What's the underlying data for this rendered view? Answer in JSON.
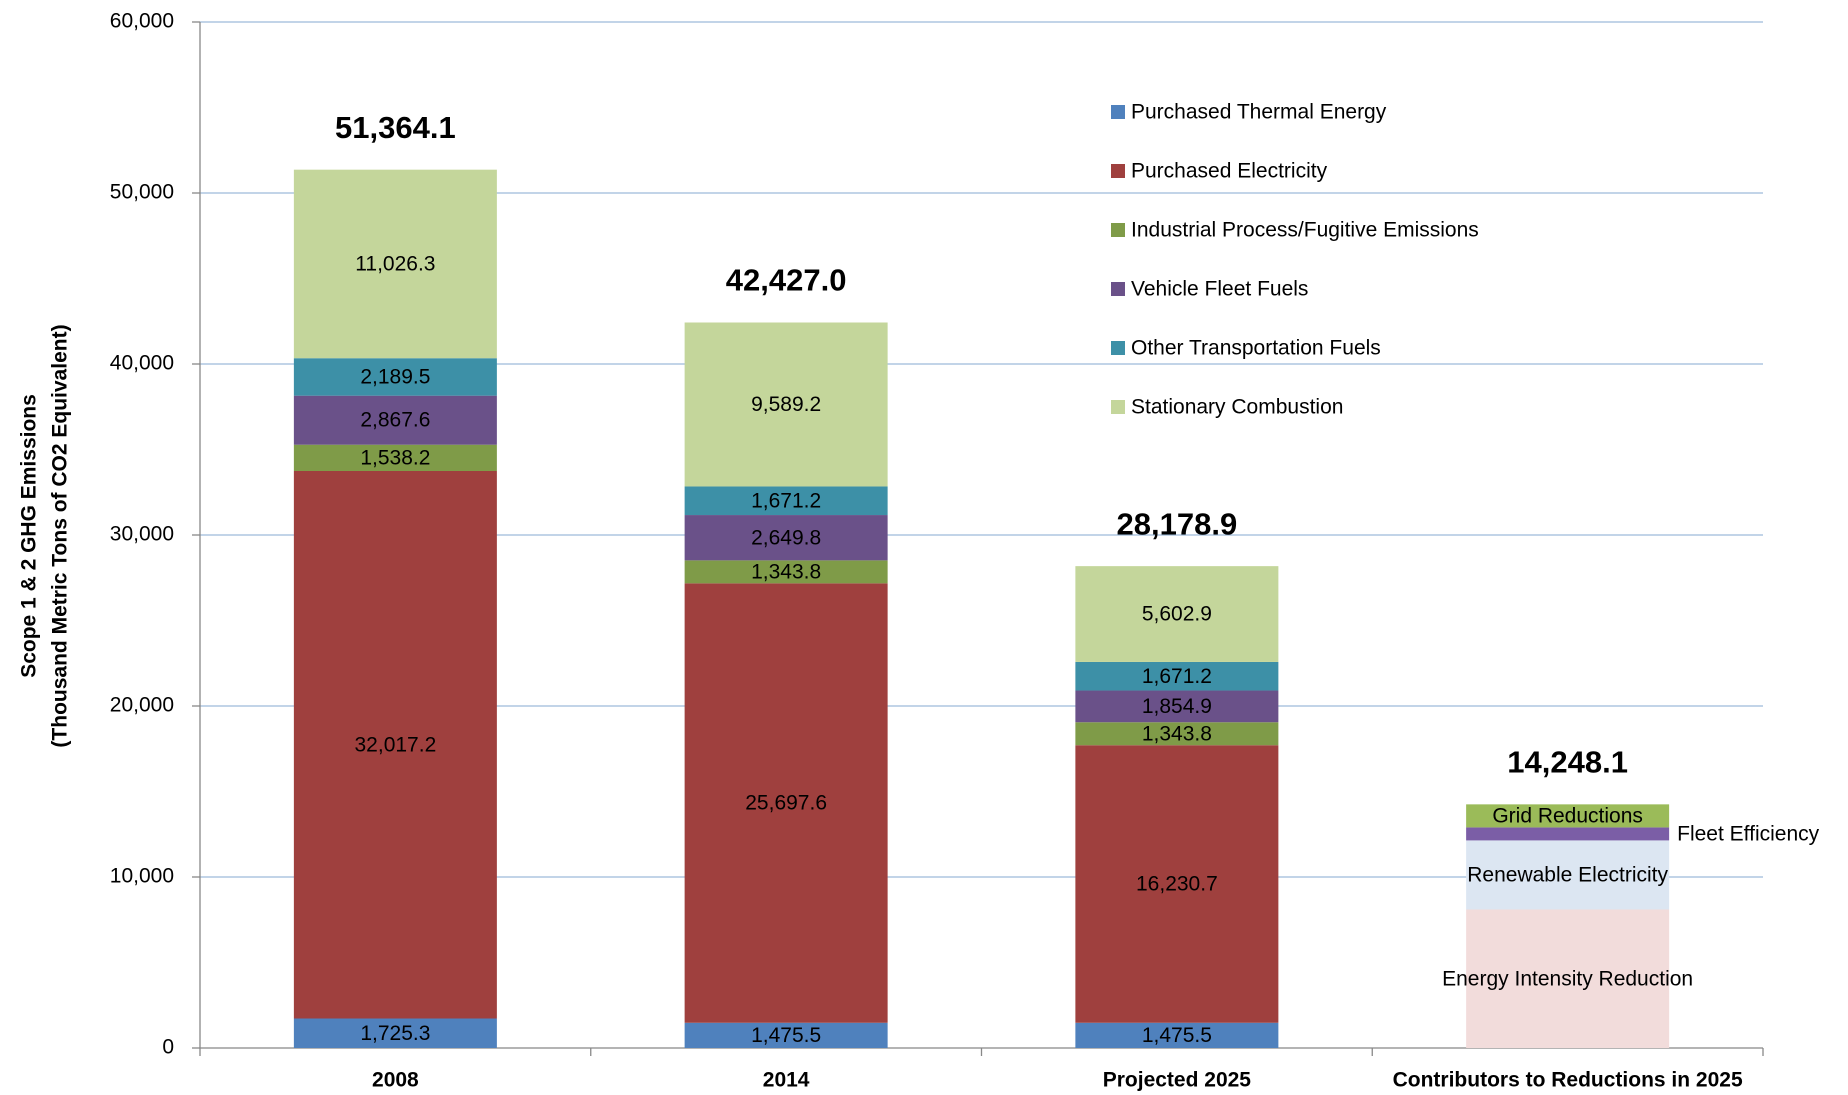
{
  "chart_data": {
    "type": "stacked_bar",
    "ylabel": [
      "Scope 1 & 2 GHG Emissions",
      "(Thousand Metric Tons of CO2 Equivalent)"
    ],
    "categories": [
      "2008",
      "2014",
      "Projected 2025",
      "Contributors to Reductions in 2025"
    ],
    "ylim": [
      0,
      60000
    ],
    "yticks": [
      0,
      {
        "value": 10000,
        "label": "10,000"
      },
      {
        "value": 20000,
        "label": "20,000"
      },
      {
        "value": 30000,
        "label": "30,000"
      },
      {
        "value": 40000,
        "label": "40,000"
      },
      {
        "value": 50000,
        "label": "50,000"
      },
      {
        "value": 60000,
        "label": "60,000"
      }
    ],
    "grid": true,
    "legend": "upper right",
    "series": [
      {
        "name": "Purchased Thermal Energy",
        "color": "#4f81bd",
        "values": [
          1725.3,
          1475.5,
          1475.5,
          null
        ],
        "value_labels": [
          "1,725.3",
          "1,475.5",
          "1,475.5",
          null
        ]
      },
      {
        "name": "Purchased Electricity",
        "color": "#9f403e",
        "values": [
          32017.2,
          25697.6,
          16230.7,
          null
        ],
        "value_labels": [
          "32,017.2",
          "25,697.6",
          "16,230.7",
          null
        ]
      },
      {
        "name": "Industrial Process/Fugitive Emissions",
        "color": "#7f9b48",
        "values": [
          1538.2,
          1343.8,
          1343.8,
          null
        ],
        "value_labels": [
          "1,538.2",
          "1,343.8",
          "1,343.8",
          null
        ]
      },
      {
        "name": "Vehicle Fleet Fuels",
        "color": "#6a5189",
        "values": [
          2867.6,
          2649.8,
          1854.9,
          null
        ],
        "value_labels": [
          "2,867.6",
          "2,649.8",
          "1,854.9",
          null
        ]
      },
      {
        "name": "Other Transportation Fuels",
        "color": "#3d90a7",
        "values": [
          2189.5,
          1671.2,
          1671.2,
          null
        ],
        "value_labels": [
          "2,189.5",
          "1,671.2",
          "1,671.2",
          null
        ]
      },
      {
        "name": "Stationary Combustion",
        "color": "#c4d69b",
        "values": [
          11026.3,
          9589.2,
          5602.9,
          null
        ],
        "value_labels": [
          "11,026.3",
          "9,589.2",
          "5,602.9",
          null
        ]
      }
    ],
    "reduction_series": [
      {
        "name": "Energy Intensity Reduction",
        "color": "#f2dcdb",
        "values": [
          null,
          null,
          null,
          8100
        ]
      },
      {
        "name": "Renewable Electricity",
        "color": "#dce6f2",
        "values": [
          null,
          null,
          null,
          4040
        ]
      },
      {
        "name": "Fleet Efficiency",
        "color": "#7b5ea6",
        "values": [
          null,
          null,
          null,
          760
        ]
      },
      {
        "name": "Grid Reductions",
        "color": "#9bbb59",
        "values": [
          null,
          null,
          null,
          1348.1
        ]
      }
    ],
    "totals": {
      "values": [
        51364.1,
        42427.0,
        28178.9,
        14248.1
      ],
      "value_labels": [
        "51,364.1",
        "42,427.0",
        "28,178.9",
        "14,248.1"
      ]
    }
  }
}
